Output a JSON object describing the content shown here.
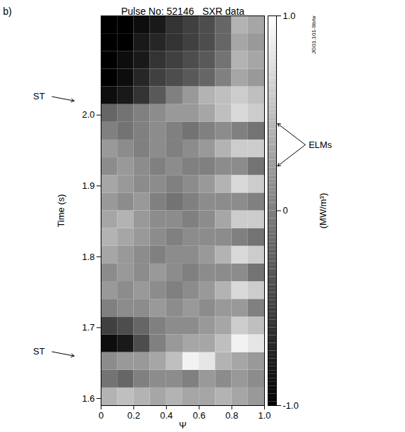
{
  "chart_data": {
    "type": "heatmap",
    "panel_label": "b)",
    "title": "Pulse No: 52146   SXR data",
    "watermark": "JG01.101-9b/w",
    "x_label": "Ψ",
    "y_label": "Time (s)",
    "xlim": [
      0,
      1
    ],
    "xticks": [
      0,
      0.2,
      0.4,
      0.6,
      0.8,
      {
        "value": 1,
        "label": "1.0"
      }
    ],
    "ylim": [
      1.59,
      2.14
    ],
    "yticks": [
      {
        "value": 1.6,
        "label": "1.6"
      },
      {
        "value": 1.7,
        "label": "1.7"
      },
      {
        "value": 1.8,
        "label": "1.8"
      },
      {
        "value": 1.9,
        "label": "1.9"
      },
      {
        "value": 2,
        "label": "2.0"
      }
    ],
    "x_bins": [
      0,
      0.1,
      0.2,
      0.3,
      0.4,
      0.5,
      0.6,
      0.7,
      0.8,
      0.9,
      1
    ],
    "y_bins": [
      1.59,
      1.615,
      1.64,
      1.665,
      1.69,
      1.715,
      1.74,
      1.765,
      1.79,
      1.815,
      1.84,
      1.865,
      1.89,
      1.915,
      1.94,
      1.965,
      1.99,
      2.015,
      2.04,
      2.065,
      2.09,
      2.115,
      2.14
    ],
    "values": [
      [
        0.4,
        0.5,
        0.4,
        0.3,
        0.4,
        0.3,
        0.3,
        0.4,
        0.3,
        0.2
      ],
      [
        -0.1,
        -0.2,
        0.0,
        0.1,
        0.1,
        0.0,
        0.2,
        0.1,
        0.2,
        0.1
      ],
      [
        0.1,
        0.2,
        0.2,
        0.3,
        0.5,
        0.9,
        0.8,
        0.4,
        0.3,
        0.2
      ],
      [
        -0.9,
        -0.8,
        -0.4,
        0.0,
        0.2,
        0.3,
        0.3,
        0.5,
        0.9,
        0.8
      ],
      [
        -0.5,
        -0.4,
        -0.2,
        0.0,
        0.1,
        0.1,
        0.2,
        0.3,
        0.6,
        0.5
      ],
      [
        0.0,
        0.1,
        0.1,
        0.2,
        0.1,
        0.2,
        0.1,
        0.2,
        0.2,
        0.0
      ],
      [
        0.2,
        0.1,
        0.2,
        0.1,
        0.0,
        0.1,
        0.2,
        0.4,
        0.7,
        0.6
      ],
      [
        0.1,
        0.2,
        0.1,
        0.2,
        0.1,
        0.0,
        0.1,
        0.1,
        0.1,
        -0.1
      ],
      [
        0.3,
        0.2,
        0.1,
        0.0,
        0.1,
        0.1,
        0.2,
        0.4,
        0.7,
        0.6
      ],
      [
        0.4,
        0.3,
        0.2,
        0.1,
        0.0,
        0.1,
        0.1,
        0.1,
        0.0,
        -0.1
      ],
      [
        0.3,
        0.4,
        0.2,
        0.1,
        0.1,
        0.0,
        0.1,
        0.3,
        0.6,
        0.6
      ],
      [
        0.2,
        0.1,
        0.2,
        0.0,
        -0.1,
        0.0,
        0.1,
        0.1,
        0.1,
        0.0
      ],
      [
        0.3,
        0.2,
        0.1,
        0.1,
        0.0,
        0.1,
        0.2,
        0.4,
        0.7,
        0.6
      ],
      [
        0.1,
        0.2,
        0.1,
        0.0,
        0.1,
        0.0,
        0.0,
        0.1,
        0.1,
        -0.1
      ],
      [
        0.2,
        0.1,
        0.0,
        0.1,
        0.0,
        0.1,
        0.2,
        0.4,
        0.6,
        0.6
      ],
      [
        0.0,
        -0.1,
        0.0,
        0.1,
        0.0,
        -0.1,
        0.0,
        0.1,
        0.0,
        -0.1
      ],
      [
        -0.2,
        -0.1,
        0.0,
        0.1,
        0.2,
        0.2,
        0.3,
        0.5,
        0.7,
        0.6
      ],
      [
        -0.9,
        -0.8,
        -0.6,
        -0.3,
        0.0,
        0.2,
        0.4,
        0.5,
        0.6,
        0.5
      ],
      [
        -1.0,
        -0.9,
        -0.7,
        -0.5,
        -0.4,
        -0.3,
        -0.2,
        0.0,
        0.3,
        0.2
      ],
      [
        -1.0,
        -0.9,
        -0.8,
        -0.6,
        -0.5,
        -0.4,
        -0.3,
        -0.1,
        0.4,
        0.3
      ],
      [
        -1.0,
        -1.0,
        -0.8,
        -0.7,
        -0.6,
        -0.5,
        -0.4,
        -0.2,
        0.3,
        0.2
      ],
      [
        -1.0,
        -1.0,
        -0.9,
        -0.8,
        -0.6,
        -0.5,
        -0.4,
        -0.2,
        0.4,
        0.3
      ]
    ],
    "colorbar": {
      "label": "(MW/m³)",
      "range": [
        -1,
        1
      ],
      "ticks": [
        {
          "value": -1,
          "label": "-1.0"
        },
        0,
        {
          "value": 1,
          "label": "1.0"
        }
      ]
    },
    "annotations": [
      {
        "text": "ST",
        "y": 2.02
      },
      {
        "text": "ST",
        "y": 1.66
      },
      {
        "text": "ELMs",
        "y": [
          1.988,
          1.928
        ]
      }
    ]
  }
}
